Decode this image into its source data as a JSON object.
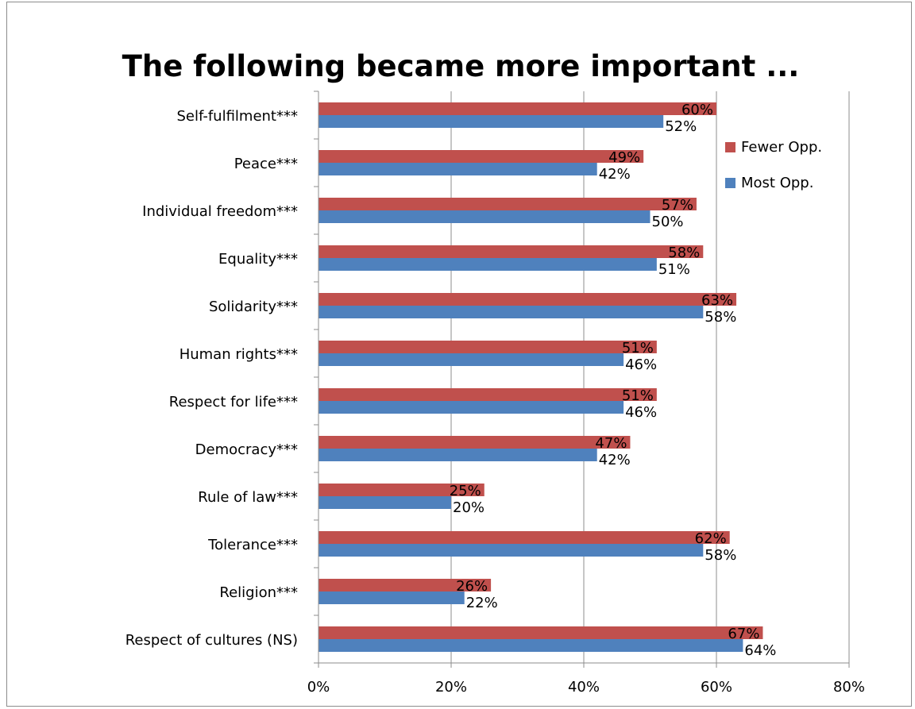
{
  "chart_data": {
    "type": "bar",
    "orientation": "horizontal",
    "title": "The following became more important ...",
    "categories": [
      "Self-fulfilment***",
      "Peace***",
      "Individual freedom***",
      "Equality***",
      "Solidarity***",
      "Human rights***",
      "Respect for life***",
      "Democracy***",
      "Rule of law***",
      "Tolerance***",
      "Religion***",
      "Respect of cultures (NS)"
    ],
    "series": [
      {
        "name": "Fewer Opp.",
        "color": "#c0504d",
        "values": [
          60,
          49,
          57,
          58,
          63,
          51,
          51,
          47,
          25,
          62,
          26,
          67
        ],
        "labels": [
          "60%",
          "49%",
          "57%",
          "58%",
          "63%",
          "51%",
          "51%",
          "47%",
          "25%",
          "62%",
          "26%",
          "67%"
        ]
      },
      {
        "name": "Most Opp.",
        "color": "#4f81bd",
        "values": [
          52,
          42,
          50,
          51,
          58,
          46,
          46,
          42,
          20,
          58,
          22,
          64
        ],
        "labels": [
          "52%",
          "42%",
          "50%",
          "51%",
          "58%",
          "46%",
          "46%",
          "42%",
          "20%",
          "58%",
          "22%",
          "64%"
        ]
      }
    ],
    "xlim": [
      0,
      80
    ],
    "x_ticks": [
      "0%",
      "20%",
      "40%",
      "60%",
      "80%"
    ],
    "grid": true,
    "legend_position": "right"
  }
}
